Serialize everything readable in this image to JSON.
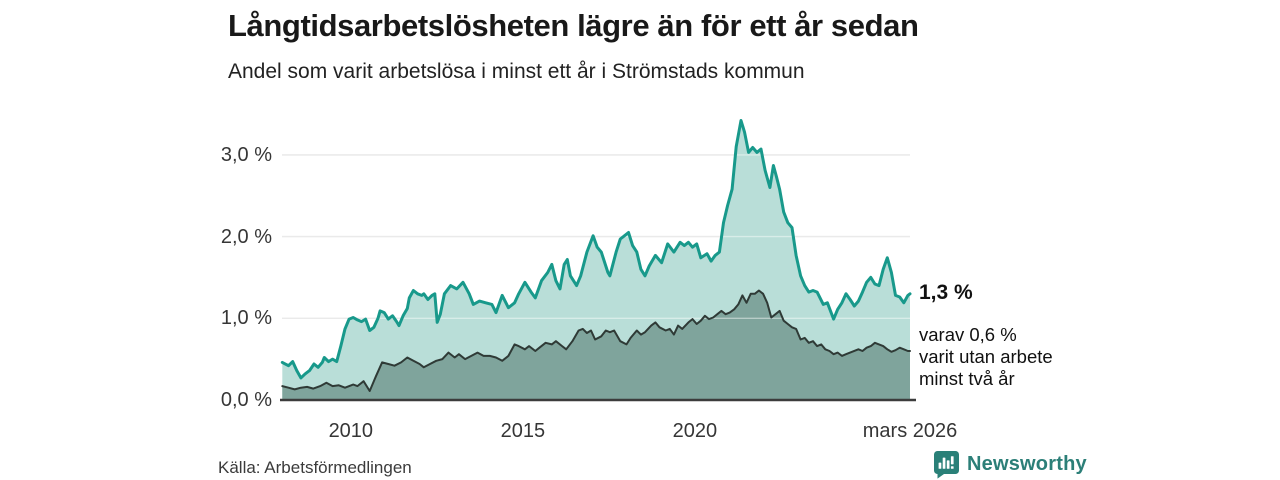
{
  "chart_data": {
    "type": "area",
    "title": "Långtidsarbetslösheten lägre än för ett år sedan",
    "subtitle": "Andel som varit arbetslösa i minst ett år i Strömstads kommun",
    "x_range": [
      2008.0,
      2026.25
    ],
    "y_range": [
      0,
      3.5
    ],
    "grid": true,
    "y_ticks": [
      {
        "value": 0,
        "label": "0,0 %"
      },
      {
        "value": 1,
        "label": "1,0 %"
      },
      {
        "value": 2,
        "label": "2,0 %"
      },
      {
        "value": 3,
        "label": "3,0 %"
      }
    ],
    "x_ticks": [
      {
        "value": 2010,
        "label": "2010"
      },
      {
        "value": 2015,
        "label": "2015"
      },
      {
        "value": 2020,
        "label": "2020"
      },
      {
        "value": 2026.25,
        "label": "mars 2026"
      }
    ],
    "colors": {
      "grid": "#d9d9d9",
      "grid_overlay": "rgba(255,255,255,0.45)",
      "axis": "#3c3c3c"
    },
    "series": [
      {
        "name": "Andel arbetslösa minst ett år",
        "stroke": "#18998b",
        "fill": "#b9ded8",
        "stroke_width": 3,
        "last_value_label": "1,3 %",
        "points": [
          [
            2008.01,
            0.46
          ],
          [
            2008.19,
            0.42
          ],
          [
            2008.31,
            0.47
          ],
          [
            2008.43,
            0.36
          ],
          [
            2008.55,
            0.27
          ],
          [
            2008.67,
            0.32
          ],
          [
            2008.8,
            0.36
          ],
          [
            2008.93,
            0.44
          ],
          [
            2009.05,
            0.4
          ],
          [
            2009.17,
            0.46
          ],
          [
            2009.23,
            0.52
          ],
          [
            2009.35,
            0.47
          ],
          [
            2009.47,
            0.5
          ],
          [
            2009.59,
            0.47
          ],
          [
            2009.71,
            0.66
          ],
          [
            2009.83,
            0.87
          ],
          [
            2009.95,
            0.99
          ],
          [
            2010.07,
            1.01
          ],
          [
            2010.19,
            0.98
          ],
          [
            2010.31,
            0.96
          ],
          [
            2010.43,
            0.99
          ],
          [
            2010.55,
            0.85
          ],
          [
            2010.67,
            0.89
          ],
          [
            2010.79,
            1.0
          ],
          [
            2010.85,
            1.09
          ],
          [
            2010.97,
            1.07
          ],
          [
            2011.09,
            0.99
          ],
          [
            2011.21,
            1.03
          ],
          [
            2011.33,
            0.96
          ],
          [
            2011.4,
            0.91
          ],
          [
            2011.52,
            1.03
          ],
          [
            2011.64,
            1.12
          ],
          [
            2011.7,
            1.25
          ],
          [
            2011.82,
            1.34
          ],
          [
            2011.94,
            1.3
          ],
          [
            2012.06,
            1.28
          ],
          [
            2012.12,
            1.3
          ],
          [
            2012.24,
            1.23
          ],
          [
            2012.36,
            1.28
          ],
          [
            2012.44,
            1.3
          ],
          [
            2012.51,
            0.95
          ],
          [
            2012.6,
            1.05
          ],
          [
            2012.72,
            1.3
          ],
          [
            2012.9,
            1.4
          ],
          [
            2013.08,
            1.36
          ],
          [
            2013.26,
            1.44
          ],
          [
            2013.44,
            1.3
          ],
          [
            2013.56,
            1.17
          ],
          [
            2013.74,
            1.21
          ],
          [
            2013.92,
            1.19
          ],
          [
            2014.1,
            1.17
          ],
          [
            2014.22,
            1.07
          ],
          [
            2014.4,
            1.28
          ],
          [
            2014.58,
            1.13
          ],
          [
            2014.76,
            1.19
          ],
          [
            2014.88,
            1.3
          ],
          [
            2015.06,
            1.44
          ],
          [
            2015.24,
            1.32
          ],
          [
            2015.36,
            1.25
          ],
          [
            2015.54,
            1.46
          ],
          [
            2015.72,
            1.56
          ],
          [
            2015.84,
            1.66
          ],
          [
            2015.96,
            1.46
          ],
          [
            2016.08,
            1.36
          ],
          [
            2016.2,
            1.66
          ],
          [
            2016.29,
            1.72
          ],
          [
            2016.38,
            1.52
          ],
          [
            2016.56,
            1.4
          ],
          [
            2016.68,
            1.52
          ],
          [
            2016.86,
            1.81
          ],
          [
            2017.04,
            2.01
          ],
          [
            2017.16,
            1.87
          ],
          [
            2017.28,
            1.81
          ],
          [
            2017.47,
            1.56
          ],
          [
            2017.53,
            1.52
          ],
          [
            2017.71,
            1.81
          ],
          [
            2017.83,
            1.97
          ],
          [
            2017.95,
            2.01
          ],
          [
            2018.07,
            2.05
          ],
          [
            2018.19,
            1.89
          ],
          [
            2018.31,
            1.81
          ],
          [
            2018.43,
            1.6
          ],
          [
            2018.55,
            1.52
          ],
          [
            2018.67,
            1.64
          ],
          [
            2018.85,
            1.77
          ],
          [
            2019.03,
            1.68
          ],
          [
            2019.21,
            1.91
          ],
          [
            2019.39,
            1.81
          ],
          [
            2019.57,
            1.93
          ],
          [
            2019.69,
            1.89
          ],
          [
            2019.81,
            1.93
          ],
          [
            2019.93,
            1.87
          ],
          [
            2020.05,
            1.91
          ],
          [
            2020.17,
            1.74
          ],
          [
            2020.35,
            1.79
          ],
          [
            2020.47,
            1.7
          ],
          [
            2020.59,
            1.77
          ],
          [
            2020.71,
            1.81
          ],
          [
            2020.83,
            2.17
          ],
          [
            2020.95,
            2.38
          ],
          [
            2021.08,
            2.58
          ],
          [
            2021.2,
            3.1
          ],
          [
            2021.34,
            3.42
          ],
          [
            2021.44,
            3.28
          ],
          [
            2021.56,
            3.03
          ],
          [
            2021.68,
            3.09
          ],
          [
            2021.8,
            3.03
          ],
          [
            2021.92,
            3.07
          ],
          [
            2022.04,
            2.81
          ],
          [
            2022.18,
            2.6
          ],
          [
            2022.28,
            2.87
          ],
          [
            2022.37,
            2.73
          ],
          [
            2022.46,
            2.58
          ],
          [
            2022.58,
            2.3
          ],
          [
            2022.7,
            2.17
          ],
          [
            2022.82,
            2.11
          ],
          [
            2022.94,
            1.77
          ],
          [
            2023.07,
            1.52
          ],
          [
            2023.19,
            1.4
          ],
          [
            2023.31,
            1.32
          ],
          [
            2023.43,
            1.34
          ],
          [
            2023.55,
            1.32
          ],
          [
            2023.73,
            1.17
          ],
          [
            2023.85,
            1.19
          ],
          [
            2024.03,
            0.99
          ],
          [
            2024.15,
            1.11
          ],
          [
            2024.27,
            1.19
          ],
          [
            2024.39,
            1.3
          ],
          [
            2024.51,
            1.23
          ],
          [
            2024.63,
            1.15
          ],
          [
            2024.75,
            1.21
          ],
          [
            2024.87,
            1.32
          ],
          [
            2024.99,
            1.44
          ],
          [
            2025.11,
            1.5
          ],
          [
            2025.23,
            1.42
          ],
          [
            2025.35,
            1.4
          ],
          [
            2025.47,
            1.6
          ],
          [
            2025.59,
            1.74
          ],
          [
            2025.71,
            1.56
          ],
          [
            2025.83,
            1.28
          ],
          [
            2025.95,
            1.26
          ],
          [
            2026.07,
            1.19
          ],
          [
            2026.19,
            1.28
          ],
          [
            2026.25,
            1.3
          ]
        ]
      },
      {
        "name": "Andel arbetslösa minst två år",
        "stroke": "#2f3a36",
        "fill": "#7fa49c",
        "stroke_width": 2,
        "last_value_label": "0,6 %",
        "points": [
          [
            2008.01,
            0.17
          ],
          [
            2008.19,
            0.15
          ],
          [
            2008.37,
            0.13
          ],
          [
            2008.55,
            0.15
          ],
          [
            2008.73,
            0.16
          ],
          [
            2008.91,
            0.14
          ],
          [
            2009.11,
            0.17
          ],
          [
            2009.29,
            0.21
          ],
          [
            2009.47,
            0.17
          ],
          [
            2009.65,
            0.18
          ],
          [
            2009.83,
            0.15
          ],
          [
            2010.01,
            0.18
          ],
          [
            2010.07,
            0.19
          ],
          [
            2010.19,
            0.17
          ],
          [
            2010.37,
            0.23
          ],
          [
            2010.55,
            0.11
          ],
          [
            2010.73,
            0.29
          ],
          [
            2010.91,
            0.46
          ],
          [
            2011.09,
            0.44
          ],
          [
            2011.27,
            0.42
          ],
          [
            2011.46,
            0.46
          ],
          [
            2011.64,
            0.52
          ],
          [
            2011.82,
            0.48
          ],
          [
            2012.0,
            0.44
          ],
          [
            2012.12,
            0.4
          ],
          [
            2012.3,
            0.44
          ],
          [
            2012.48,
            0.48
          ],
          [
            2012.66,
            0.5
          ],
          [
            2012.84,
            0.58
          ],
          [
            2013.02,
            0.52
          ],
          [
            2013.14,
            0.56
          ],
          [
            2013.32,
            0.5
          ],
          [
            2013.5,
            0.54
          ],
          [
            2013.68,
            0.58
          ],
          [
            2013.86,
            0.54
          ],
          [
            2014.04,
            0.54
          ],
          [
            2014.22,
            0.52
          ],
          [
            2014.4,
            0.48
          ],
          [
            2014.58,
            0.54
          ],
          [
            2014.76,
            0.68
          ],
          [
            2014.88,
            0.66
          ],
          [
            2015.06,
            0.62
          ],
          [
            2015.18,
            0.66
          ],
          [
            2015.36,
            0.6
          ],
          [
            2015.48,
            0.64
          ],
          [
            2015.66,
            0.7
          ],
          [
            2015.84,
            0.68
          ],
          [
            2015.96,
            0.72
          ],
          [
            2016.14,
            0.66
          ],
          [
            2016.26,
            0.62
          ],
          [
            2016.44,
            0.72
          ],
          [
            2016.62,
            0.85
          ],
          [
            2016.74,
            0.87
          ],
          [
            2016.86,
            0.82
          ],
          [
            2016.98,
            0.85
          ],
          [
            2017.1,
            0.74
          ],
          [
            2017.28,
            0.78
          ],
          [
            2017.41,
            0.85
          ],
          [
            2017.53,
            0.83
          ],
          [
            2017.65,
            0.85
          ],
          [
            2017.83,
            0.72
          ],
          [
            2018.01,
            0.68
          ],
          [
            2018.13,
            0.76
          ],
          [
            2018.31,
            0.85
          ],
          [
            2018.43,
            0.8
          ],
          [
            2018.55,
            0.83
          ],
          [
            2018.73,
            0.91
          ],
          [
            2018.85,
            0.95
          ],
          [
            2018.97,
            0.89
          ],
          [
            2019.15,
            0.85
          ],
          [
            2019.27,
            0.87
          ],
          [
            2019.39,
            0.8
          ],
          [
            2019.51,
            0.91
          ],
          [
            2019.63,
            0.87
          ],
          [
            2019.81,
            0.95
          ],
          [
            2019.93,
            0.99
          ],
          [
            2020.05,
            0.93
          ],
          [
            2020.17,
            0.97
          ],
          [
            2020.29,
            1.03
          ],
          [
            2020.41,
            0.99
          ],
          [
            2020.53,
            1.01
          ],
          [
            2020.65,
            1.05
          ],
          [
            2020.77,
            1.09
          ],
          [
            2020.89,
            1.05
          ],
          [
            2021.01,
            1.07
          ],
          [
            2021.14,
            1.11
          ],
          [
            2021.26,
            1.17
          ],
          [
            2021.38,
            1.28
          ],
          [
            2021.5,
            1.19
          ],
          [
            2021.62,
            1.3
          ],
          [
            2021.74,
            1.3
          ],
          [
            2021.86,
            1.34
          ],
          [
            2021.98,
            1.3
          ],
          [
            2022.1,
            1.19
          ],
          [
            2022.22,
            1.01
          ],
          [
            2022.34,
            1.05
          ],
          [
            2022.46,
            1.09
          ],
          [
            2022.58,
            0.97
          ],
          [
            2022.7,
            0.93
          ],
          [
            2022.82,
            0.89
          ],
          [
            2022.94,
            0.87
          ],
          [
            2023.07,
            0.74
          ],
          [
            2023.19,
            0.76
          ],
          [
            2023.31,
            0.7
          ],
          [
            2023.43,
            0.72
          ],
          [
            2023.55,
            0.66
          ],
          [
            2023.67,
            0.68
          ],
          [
            2023.79,
            0.62
          ],
          [
            2023.91,
            0.6
          ],
          [
            2024.03,
            0.56
          ],
          [
            2024.15,
            0.58
          ],
          [
            2024.27,
            0.54
          ],
          [
            2024.39,
            0.56
          ],
          [
            2024.51,
            0.58
          ],
          [
            2024.75,
            0.62
          ],
          [
            2024.87,
            0.6
          ],
          [
            2024.99,
            0.64
          ],
          [
            2025.11,
            0.66
          ],
          [
            2025.23,
            0.7
          ],
          [
            2025.35,
            0.68
          ],
          [
            2025.47,
            0.66
          ],
          [
            2025.59,
            0.62
          ],
          [
            2025.71,
            0.59
          ],
          [
            2025.83,
            0.61
          ],
          [
            2025.95,
            0.64
          ],
          [
            2026.07,
            0.62
          ],
          [
            2026.19,
            0.6
          ],
          [
            2026.25,
            0.6
          ]
        ]
      }
    ],
    "annotations": {
      "primary": "1,3 %",
      "secondary_lines": [
        "varav 0,6 %",
        "varit utan arbete",
        "minst två år"
      ]
    }
  },
  "footer": {
    "source": "Källa: Arbetsförmedlingen",
    "brand": "Newsworthy",
    "brand_color": "#2c7f78",
    "logo_icon": "bar-chart-speech-bubble-icon"
  }
}
